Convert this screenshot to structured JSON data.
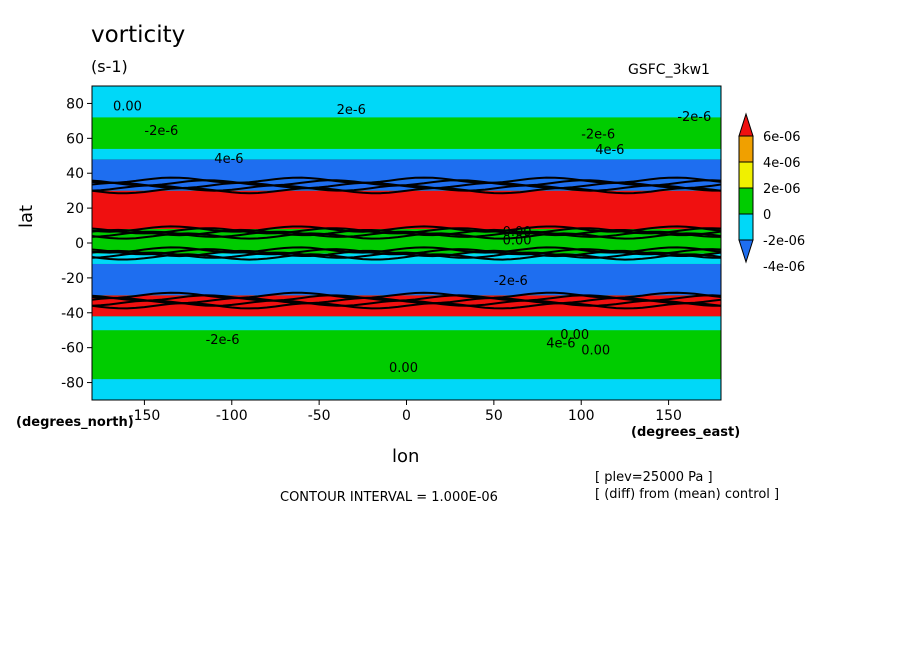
{
  "chart_data": {
    "type": "heatmap",
    "title": "vorticity",
    "units": "(s-1)",
    "model": "GSFC_3kw1",
    "xlabel": "lon",
    "ylabel": "lat",
    "x_unit": "(degrees_east)",
    "y_unit": "(degrees_north)",
    "xlim": [
      -180,
      180
    ],
    "ylim": [
      -90,
      90
    ],
    "x_ticks": [
      "-150",
      "-100",
      "-50",
      "0",
      "50",
      "100",
      "150"
    ],
    "y_ticks": [
      "80",
      "60",
      "40",
      "20",
      "0",
      "-20",
      "-40",
      "-60",
      "-80"
    ],
    "contour_interval": "CONTOUR INTERVAL = 1.000E-06",
    "annotations": [
      "[ plev=25000 Pa ]",
      "[ (diff) from (mean) control ]"
    ],
    "legend": {
      "labels": [
        "6e-06",
        "4e-06",
        "2e-06",
        "0",
        "-2e-06",
        "-4e-06"
      ],
      "colors": [
        "#1e6ef0",
        "#00d8f8",
        "#00cc00",
        "#f0f000",
        "#f0a000",
        "#f01010"
      ]
    },
    "zonal_bands": [
      {
        "lat": [
          -90,
          -78
        ],
        "class": "-2e-06 to 0"
      },
      {
        "lat": [
          -78,
          -68
        ],
        "class": "0 to 2e-06"
      },
      {
        "lat": [
          -68,
          -50
        ],
        "class": "0 to 2e-06"
      },
      {
        "lat": [
          -50,
          -42
        ],
        "class": "-2e-06 to 0"
      },
      {
        "lat": [
          -42,
          -30
        ],
        "class": "above 6e-06"
      },
      {
        "lat": [
          -30,
          -12
        ],
        "class": "below -4e-06"
      },
      {
        "lat": [
          -12,
          -6
        ],
        "class": "-2e-06 to 0"
      },
      {
        "lat": [
          -6,
          8
        ],
        "class": "0 to 2e-06"
      },
      {
        "lat": [
          8,
          30
        ],
        "class": "above 6e-06"
      },
      {
        "lat": [
          30,
          48
        ],
        "class": "below -4e-06"
      },
      {
        "lat": [
          48,
          54
        ],
        "class": "-2e-06 to 0"
      },
      {
        "lat": [
          54,
          72
        ],
        "class": "0 to 2e-06"
      },
      {
        "lat": [
          72,
          90
        ],
        "class": "-2e-06 to 0"
      }
    ],
    "contour_labels": [
      "0.00",
      "-2e-6",
      "4e-6",
      "2e-6",
      "-2e-6",
      "4e-6",
      "-2e-6",
      "0.00",
      "0.00",
      "-2e-6",
      "-2e-6",
      "4e-6",
      "0.00",
      "0.00",
      "0.00"
    ],
    "grid": false
  }
}
